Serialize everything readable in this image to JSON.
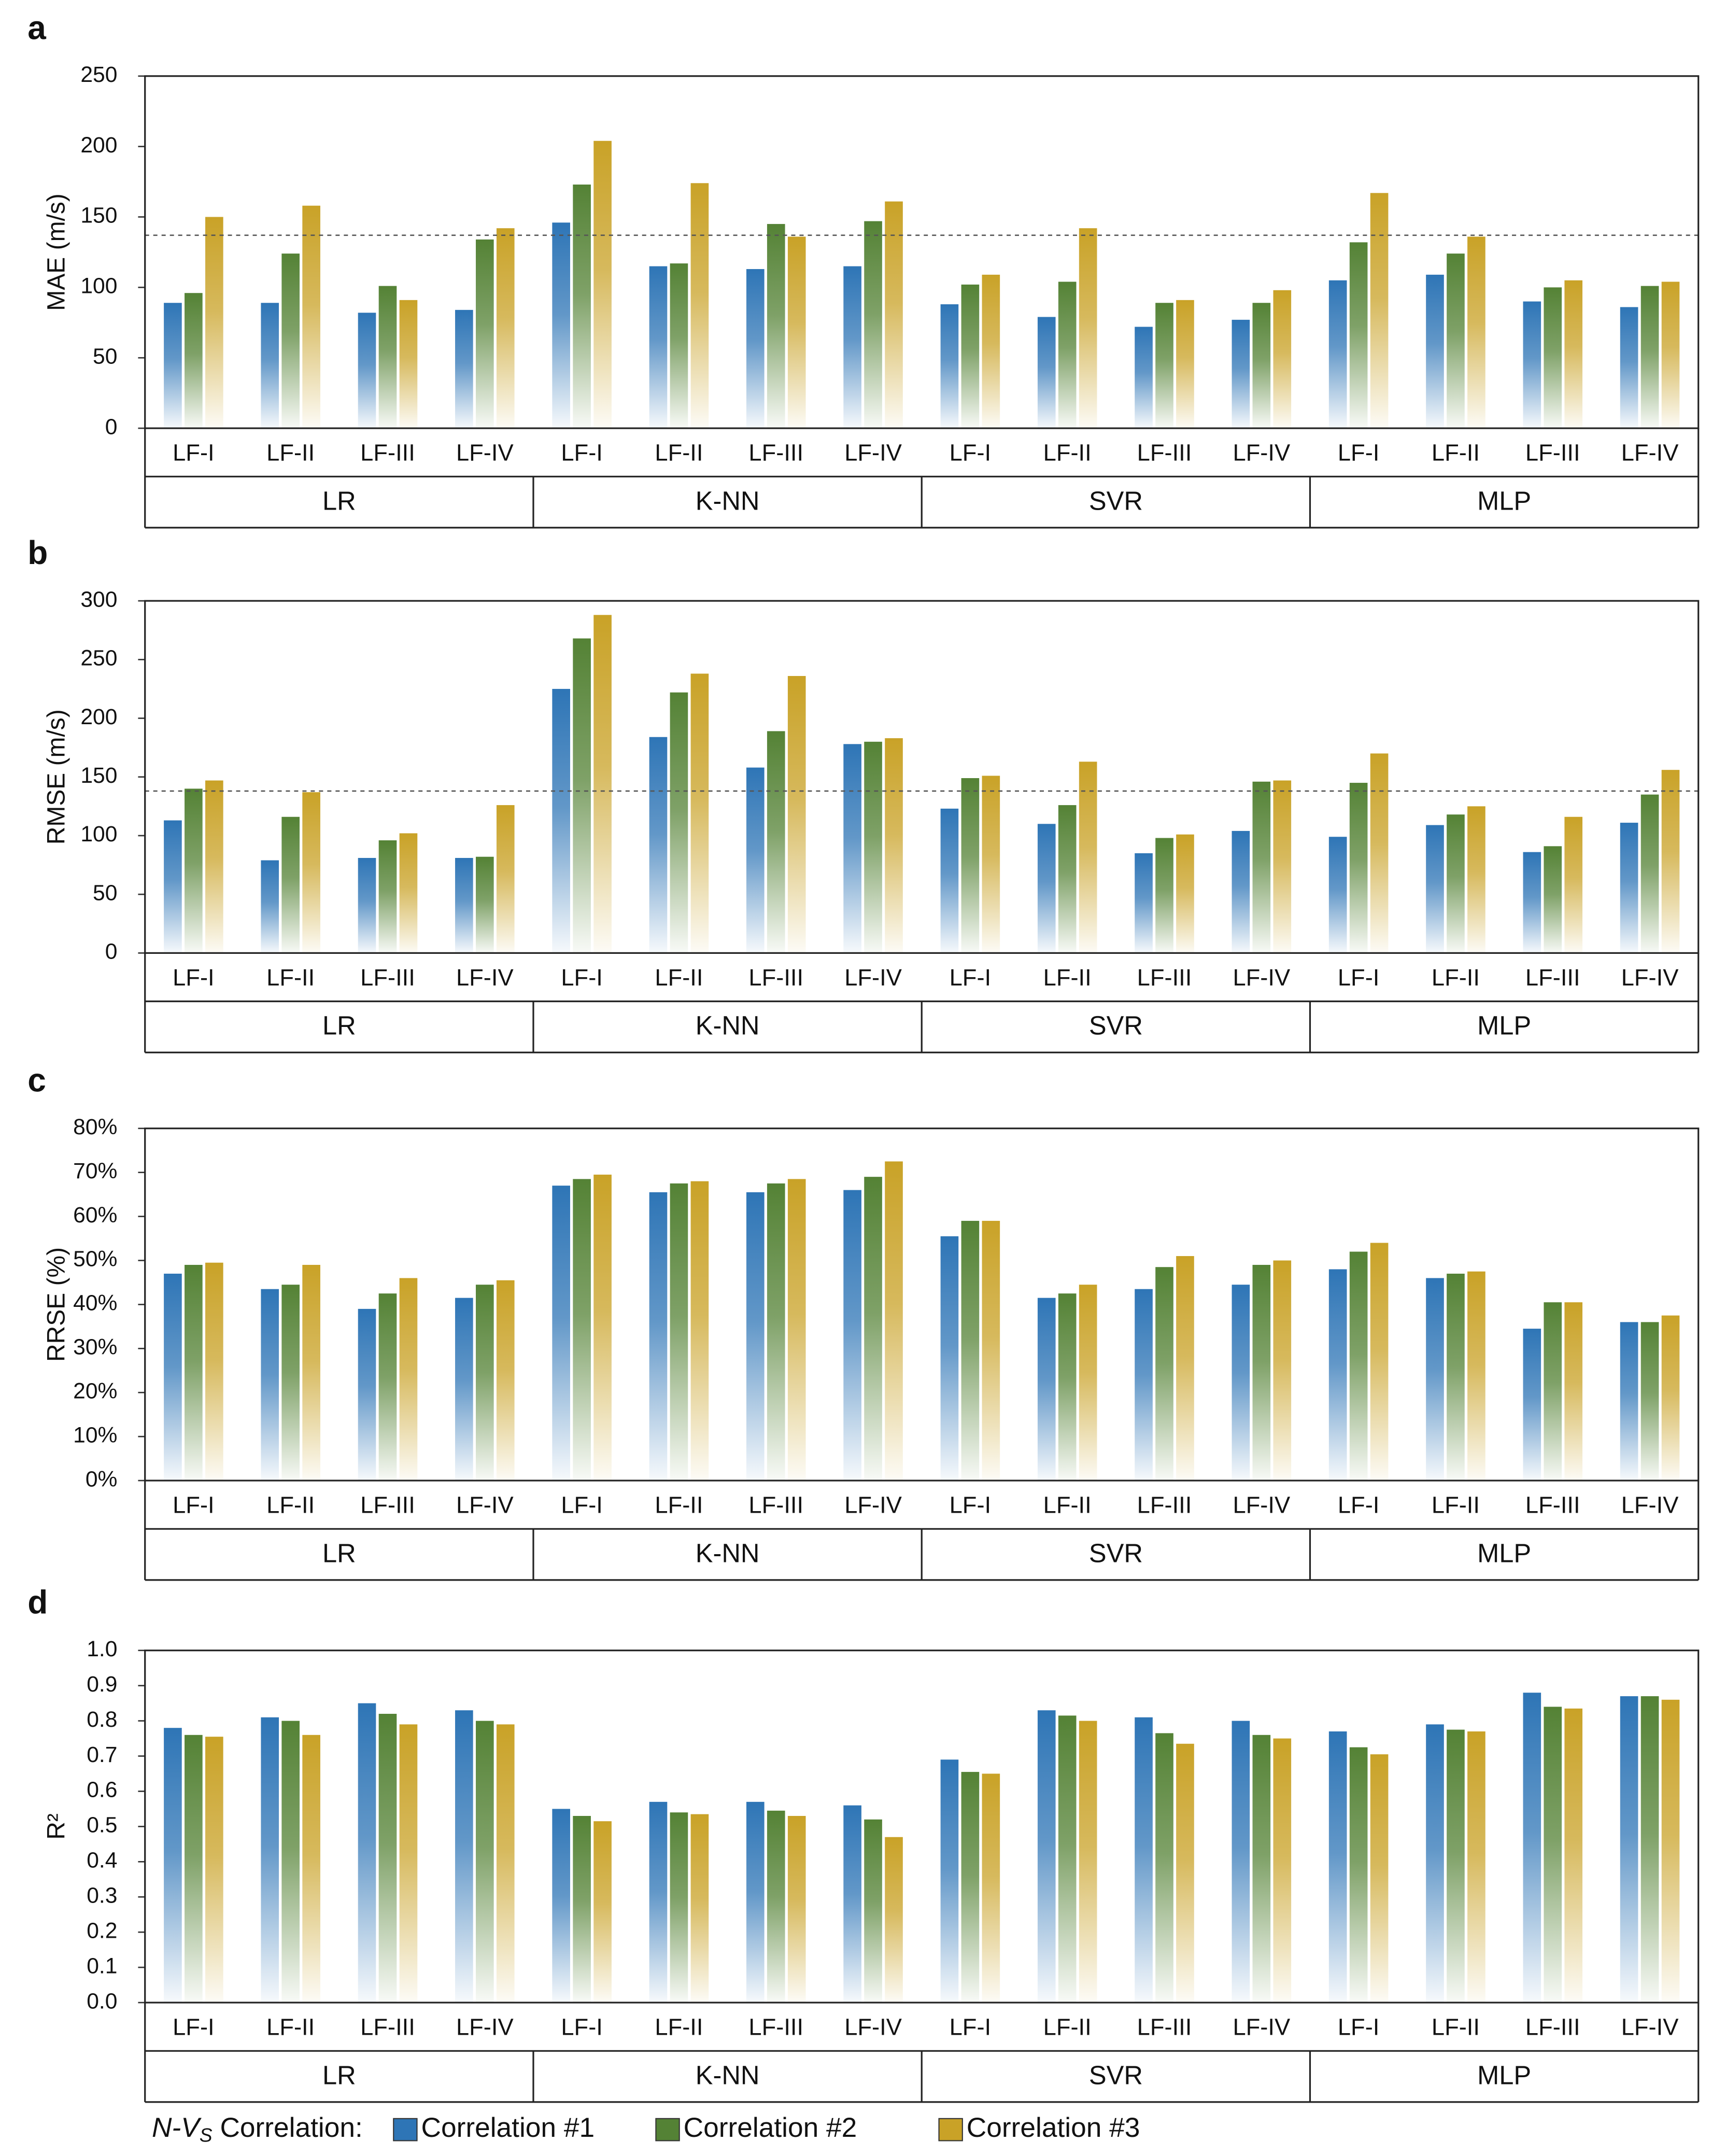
{
  "chart_data": [
    {
      "type": "bar",
      "panel": "a",
      "y_label": "MAE (m/s)",
      "categories": [
        "LF-I",
        "LF-II",
        "LF-III",
        "LF-IV",
        "LF-I",
        "LF-II",
        "LF-III",
        "LF-IV",
        "LF-I",
        "LF-II",
        "LF-III",
        "LF-IV",
        "LF-I",
        "LF-II",
        "LF-III",
        "LF-IV"
      ],
      "groups": [
        "LR",
        "K-NN",
        "SVR",
        "MLP"
      ],
      "series": [
        {
          "values": [
            89,
            89,
            82,
            84,
            146,
            115,
            113,
            115,
            88,
            79,
            72,
            77,
            105,
            109,
            90,
            86
          ]
        },
        {
          "values": [
            96,
            124,
            101,
            134,
            173,
            117,
            145,
            147,
            102,
            104,
            89,
            89,
            132,
            124,
            100,
            101
          ]
        },
        {
          "values": [
            150,
            158,
            91,
            142,
            204,
            174,
            136,
            161,
            109,
            142,
            91,
            98,
            167,
            136,
            105,
            104
          ]
        }
      ],
      "ylim": [
        0,
        250
      ],
      "yticks": [
        0,
        50,
        100,
        150,
        200,
        250
      ],
      "ref_line": 137
    },
    {
      "type": "bar",
      "panel": "b",
      "y_label": "RMSE (m/s)",
      "categories": [
        "LF-I",
        "LF-II",
        "LF-III",
        "LF-IV",
        "LF-I",
        "LF-II",
        "LF-III",
        "LF-IV",
        "LF-I",
        "LF-II",
        "LF-III",
        "LF-IV",
        "LF-I",
        "LF-II",
        "LF-III",
        "LF-IV"
      ],
      "groups": [
        "LR",
        "K-NN",
        "SVR",
        "MLP"
      ],
      "series": [
        {
          "values": [
            113,
            79,
            81,
            81,
            225,
            184,
            158,
            178,
            123,
            110,
            85,
            104,
            99,
            109,
            86,
            111
          ]
        },
        {
          "values": [
            140,
            116,
            96,
            82,
            268,
            222,
            189,
            180,
            149,
            126,
            98,
            146,
            145,
            118,
            91,
            135
          ]
        },
        {
          "values": [
            147,
            137,
            102,
            126,
            288,
            238,
            236,
            183,
            151,
            163,
            101,
            147,
            170,
            125,
            116,
            156
          ]
        }
      ],
      "ylim": [
        0,
        300
      ],
      "yticks": [
        0,
        50,
        100,
        150,
        200,
        250,
        300
      ],
      "ref_line": 138
    },
    {
      "type": "bar",
      "panel": "c",
      "y_label": "RRSE (%)",
      "categories": [
        "LF-I",
        "LF-II",
        "LF-III",
        "LF-IV",
        "LF-I",
        "LF-II",
        "LF-III",
        "LF-IV",
        "LF-I",
        "LF-II",
        "LF-III",
        "LF-IV",
        "LF-I",
        "LF-II",
        "LF-III",
        "LF-IV"
      ],
      "groups": [
        "LR",
        "K-NN",
        "SVR",
        "MLP"
      ],
      "series": [
        {
          "values": [
            47,
            43.5,
            39,
            41.5,
            67,
            65.5,
            65.5,
            66,
            55.5,
            41.5,
            43.5,
            44.5,
            48,
            46,
            34.5,
            36
          ]
        },
        {
          "values": [
            49,
            44.5,
            42.5,
            44.5,
            68.5,
            67.5,
            67.5,
            69,
            59,
            42.5,
            48.5,
            49,
            52,
            47,
            40.5,
            36
          ]
        },
        {
          "values": [
            49.5,
            49,
            46,
            45.5,
            69.5,
            68,
            68.5,
            72.5,
            59,
            44.5,
            51,
            50,
            54,
            47.5,
            40.5,
            37.5
          ]
        }
      ],
      "ylim": [
        0,
        80
      ],
      "yticks": [
        {
          "value": 0,
          "label": "0%"
        },
        {
          "value": 10,
          "label": "10%"
        },
        {
          "value": 20,
          "label": "20%"
        },
        {
          "value": 30,
          "label": "30%"
        },
        {
          "value": 40,
          "label": "40%"
        },
        {
          "value": 50,
          "label": "50%"
        },
        {
          "value": 60,
          "label": "60%"
        },
        {
          "value": 70,
          "label": "70%"
        },
        {
          "value": 80,
          "label": "80%"
        }
      ]
    },
    {
      "type": "bar",
      "panel": "d",
      "y_label": "R²",
      "categories": [
        "LF-I",
        "LF-II",
        "LF-III",
        "LF-IV",
        "LF-I",
        "LF-II",
        "LF-III",
        "LF-IV",
        "LF-I",
        "LF-II",
        "LF-III",
        "LF-IV",
        "LF-I",
        "LF-II",
        "LF-III",
        "LF-IV"
      ],
      "groups": [
        "LR",
        "K-NN",
        "SVR",
        "MLP"
      ],
      "series": [
        {
          "values": [
            0.78,
            0.81,
            0.85,
            0.83,
            0.55,
            0.57,
            0.57,
            0.56,
            0.69,
            0.83,
            0.81,
            0.8,
            0.77,
            0.79,
            0.88,
            0.87
          ]
        },
        {
          "values": [
            0.76,
            0.8,
            0.82,
            0.8,
            0.53,
            0.54,
            0.545,
            0.52,
            0.655,
            0.815,
            0.765,
            0.76,
            0.725,
            0.775,
            0.84,
            0.87
          ]
        },
        {
          "values": [
            0.755,
            0.76,
            0.79,
            0.79,
            0.515,
            0.535,
            0.53,
            0.47,
            0.65,
            0.8,
            0.735,
            0.75,
            0.705,
            0.77,
            0.835,
            0.86
          ]
        }
      ],
      "ylim": [
        0,
        1
      ],
      "yticks": [
        {
          "value": 0,
          "label": "0.0"
        },
        0.1,
        0.2,
        0.3,
        0.4,
        0.5,
        0.6,
        0.7,
        0.8,
        0.9,
        {
          "value": 1,
          "label": "1.0"
        }
      ]
    }
  ],
  "legend": {
    "title": {
      "prefix": "N-V",
      "subscript": "S",
      "suffix": " Correlation:"
    },
    "entries": [
      {
        "name": "Correlation #1",
        "color": "#2e75b6"
      },
      {
        "name": "Correlation #2",
        "color": "#548235"
      },
      {
        "name": "Correlation #3",
        "color": "#c9a227"
      }
    ]
  }
}
